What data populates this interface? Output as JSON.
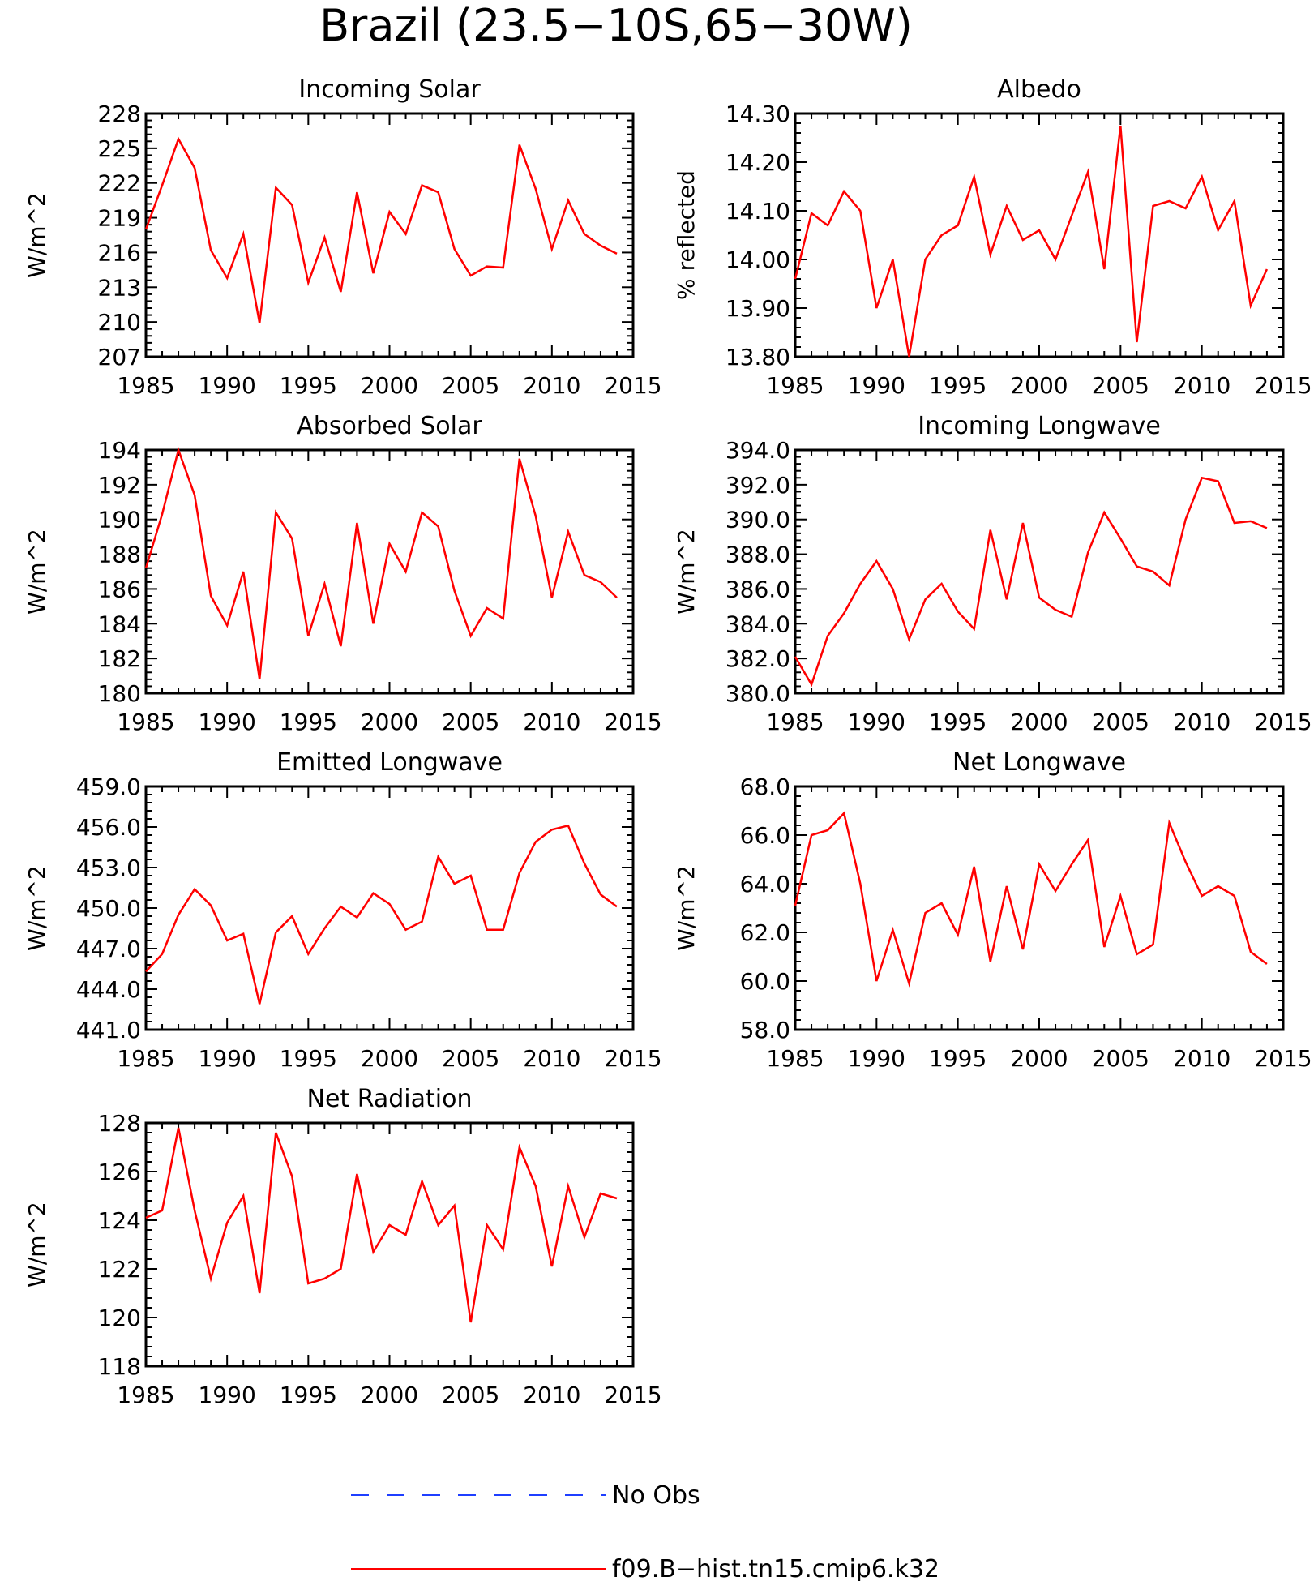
{
  "figure": {
    "title": "Brazil (23.5−10S,65−30W)",
    "legend": [
      {
        "label": "No Obs",
        "color": "#1f3fff",
        "style": "dashed"
      },
      {
        "label": "f09.B−hist.tn15.cmip6.k32",
        "color": "#ff0000",
        "style": "solid"
      }
    ]
  },
  "chart_data": [
    {
      "type": "line",
      "title": "Incoming Solar",
      "ylabel": "W/m^2",
      "xlim": [
        1985,
        2015
      ],
      "ylim": [
        207,
        228
      ],
      "xticks": [
        "1985",
        "1990",
        "1995",
        "2000",
        "2005",
        "2010",
        "2015"
      ],
      "yticks": [
        "207",
        "210",
        "213",
        "216",
        "219",
        "222",
        "225",
        "228"
      ],
      "x": [
        1985,
        1986,
        1987,
        1988,
        1989,
        1990,
        1991,
        1992,
        1993,
        1994,
        1995,
        1996,
        1997,
        1998,
        1999,
        2000,
        2001,
        2002,
        2003,
        2004,
        2005,
        2006,
        2007,
        2008,
        2009,
        2010,
        2011,
        2012,
        2013,
        2014
      ],
      "series": [
        {
          "color": "#ff0000",
          "values": [
            218.0,
            221.8,
            225.8,
            223.3,
            216.2,
            213.8,
            217.6,
            209.9,
            221.6,
            220.1,
            213.4,
            217.3,
            212.6,
            221.2,
            214.2,
            219.5,
            217.6,
            221.8,
            221.2,
            216.3,
            214.0,
            214.8,
            214.7,
            225.3,
            221.5,
            216.3,
            220.5,
            217.6,
            216.6,
            215.9
          ]
        }
      ]
    },
    {
      "type": "line",
      "title": "Albedo",
      "ylabel": "% reflected",
      "xlim": [
        1985,
        2015
      ],
      "ylim": [
        13.8,
        14.3
      ],
      "xticks": [
        "1985",
        "1990",
        "1995",
        "2000",
        "2005",
        "2010",
        "2015"
      ],
      "yticks": [
        "13.80",
        "13.90",
        "14.00",
        "14.10",
        "14.20",
        "14.30"
      ],
      "x": [
        1985,
        1986,
        1987,
        1988,
        1989,
        1990,
        1991,
        1992,
        1993,
        1994,
        1995,
        1996,
        1997,
        1998,
        1999,
        2000,
        2001,
        2002,
        2003,
        2004,
        2005,
        2006,
        2007,
        2008,
        2009,
        2010,
        2011,
        2012,
        2013,
        2014
      ],
      "series": [
        {
          "color": "#ff0000",
          "values": [
            13.96,
            14.095,
            14.07,
            14.14,
            14.1,
            13.9,
            14.0,
            13.8,
            14.0,
            14.05,
            14.07,
            14.17,
            14.01,
            14.11,
            14.04,
            14.06,
            14.0,
            14.09,
            14.18,
            13.98,
            14.275,
            13.83,
            14.11,
            14.12,
            14.105,
            14.17,
            14.06,
            14.12,
            13.905,
            13.98
          ]
        }
      ]
    },
    {
      "type": "line",
      "title": "Absorbed Solar",
      "ylabel": "W/m^2",
      "xlim": [
        1985,
        2015
      ],
      "ylim": [
        180,
        194
      ],
      "xticks": [
        "1985",
        "1990",
        "1995",
        "2000",
        "2005",
        "2010",
        "2015"
      ],
      "yticks": [
        "180",
        "182",
        "184",
        "186",
        "188",
        "190",
        "192",
        "194"
      ],
      "x": [
        1985,
        1986,
        1987,
        1988,
        1989,
        1990,
        1991,
        1992,
        1993,
        1994,
        1995,
        1996,
        1997,
        1998,
        1999,
        2000,
        2001,
        2002,
        2003,
        2004,
        2005,
        2006,
        2007,
        2008,
        2009,
        2010,
        2011,
        2012,
        2013,
        2014
      ],
      "series": [
        {
          "color": "#ff0000",
          "values": [
            187.2,
            190.3,
            194.0,
            191.4,
            185.6,
            183.9,
            187.0,
            180.8,
            190.4,
            188.9,
            183.3,
            186.3,
            182.7,
            189.8,
            184.0,
            188.6,
            187.0,
            190.4,
            189.6,
            185.9,
            183.3,
            184.9,
            184.3,
            193.5,
            190.2,
            185.5,
            189.3,
            186.8,
            186.4,
            185.5
          ]
        }
      ]
    },
    {
      "type": "line",
      "title": "Incoming Longwave",
      "ylabel": "W/m^2",
      "xlim": [
        1985,
        2015
      ],
      "ylim": [
        380,
        394
      ],
      "xticks": [
        "1985",
        "1990",
        "1995",
        "2000",
        "2005",
        "2010",
        "2015"
      ],
      "yticks": [
        "380.0",
        "382.0",
        "384.0",
        "386.0",
        "388.0",
        "390.0",
        "392.0",
        "394.0"
      ],
      "x": [
        1985,
        1986,
        1987,
        1988,
        1989,
        1990,
        1991,
        1992,
        1993,
        1994,
        1995,
        1996,
        1997,
        1998,
        1999,
        2000,
        2001,
        2002,
        2003,
        2004,
        2005,
        2006,
        2007,
        2008,
        2009,
        2010,
        2011,
        2012,
        2013,
        2014
      ],
      "series": [
        {
          "color": "#ff0000",
          "values": [
            382.1,
            380.5,
            383.3,
            384.6,
            386.3,
            387.6,
            386.0,
            383.1,
            385.4,
            386.3,
            384.7,
            383.7,
            389.4,
            385.4,
            389.8,
            385.5,
            384.8,
            384.4,
            388.1,
            390.4,
            388.9,
            387.3,
            387.0,
            386.2,
            390.0,
            392.4,
            392.2,
            389.8,
            389.9,
            389.5
          ]
        }
      ]
    },
    {
      "type": "line",
      "title": "Emitted Longwave",
      "ylabel": "W/m^2",
      "xlim": [
        1985,
        2015
      ],
      "ylim": [
        441,
        459
      ],
      "xticks": [
        "1985",
        "1990",
        "1995",
        "2000",
        "2005",
        "2010",
        "2015"
      ],
      "yticks": [
        "441.0",
        "444.0",
        "447.0",
        "450.0",
        "453.0",
        "456.0",
        "459.0"
      ],
      "x": [
        1985,
        1986,
        1987,
        1988,
        1989,
        1990,
        1991,
        1992,
        1993,
        1994,
        1995,
        1996,
        1997,
        1998,
        1999,
        2000,
        2001,
        2002,
        2003,
        2004,
        2005,
        2006,
        2007,
        2008,
        2009,
        2010,
        2011,
        2012,
        2013,
        2014
      ],
      "series": [
        {
          "color": "#ff0000",
          "values": [
            445.3,
            446.6,
            449.5,
            451.4,
            450.2,
            447.6,
            448.1,
            442.9,
            448.2,
            449.4,
            446.6,
            448.5,
            450.1,
            449.3,
            451.1,
            450.3,
            448.4,
            449.0,
            453.8,
            451.8,
            452.4,
            448.4,
            448.4,
            452.6,
            454.9,
            455.8,
            456.1,
            453.3,
            451.0,
            450.1
          ]
        }
      ]
    },
    {
      "type": "line",
      "title": "Net Longwave",
      "ylabel": "W/m^2",
      "xlim": [
        1985,
        2015
      ],
      "ylim": [
        58,
        68
      ],
      "xticks": [
        "1985",
        "1990",
        "1995",
        "2000",
        "2005",
        "2010",
        "2015"
      ],
      "yticks": [
        "58.0",
        "60.0",
        "62.0",
        "64.0",
        "66.0",
        "68.0"
      ],
      "x": [
        1985,
        1986,
        1987,
        1988,
        1989,
        1990,
        1991,
        1992,
        1993,
        1994,
        1995,
        1996,
        1997,
        1998,
        1999,
        2000,
        2001,
        2002,
        2003,
        2004,
        2005,
        2006,
        2007,
        2008,
        2009,
        2010,
        2011,
        2012,
        2013,
        2014
      ],
      "series": [
        {
          "color": "#ff0000",
          "values": [
            63.1,
            66.0,
            66.2,
            66.9,
            64.0,
            60.0,
            62.1,
            59.9,
            62.8,
            63.2,
            61.9,
            64.7,
            60.8,
            63.9,
            61.3,
            64.8,
            63.7,
            64.8,
            65.8,
            61.4,
            63.5,
            61.1,
            61.5,
            66.5,
            64.9,
            63.5,
            63.9,
            63.5,
            61.2,
            60.7
          ]
        }
      ]
    },
    {
      "type": "line",
      "title": "Net Radiation",
      "ylabel": "W/m^2",
      "xlim": [
        1985,
        2015
      ],
      "ylim": [
        118,
        128
      ],
      "xticks": [
        "1985",
        "1990",
        "1995",
        "2000",
        "2005",
        "2010",
        "2015"
      ],
      "yticks": [
        "118",
        "120",
        "122",
        "124",
        "126",
        "128"
      ],
      "x": [
        1985,
        1986,
        1987,
        1988,
        1989,
        1990,
        1991,
        1992,
        1993,
        1994,
        1995,
        1996,
        1997,
        1998,
        1999,
        2000,
        2001,
        2002,
        2003,
        2004,
        2005,
        2006,
        2007,
        2008,
        2009,
        2010,
        2011,
        2012,
        2013,
        2014
      ],
      "series": [
        {
          "color": "#ff0000",
          "values": [
            124.1,
            124.4,
            127.8,
            124.4,
            121.6,
            123.9,
            125.0,
            121.0,
            127.6,
            125.8,
            121.4,
            121.6,
            122.0,
            125.9,
            122.7,
            123.8,
            123.4,
            125.6,
            123.8,
            124.6,
            119.8,
            123.8,
            122.8,
            127.0,
            125.4,
            122.1,
            125.4,
            123.3,
            125.1,
            124.9
          ]
        }
      ]
    }
  ]
}
